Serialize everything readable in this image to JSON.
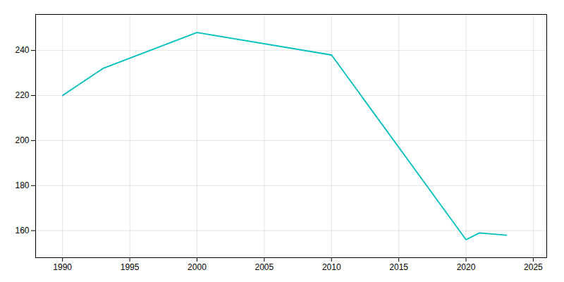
{
  "chart_data": {
    "type": "line",
    "x": [
      1990,
      1993,
      2000,
      2010,
      2020,
      2021,
      2023
    ],
    "values": [
      220,
      232,
      248,
      238,
      156,
      159,
      158
    ],
    "color": "#00BFBF",
    "xlim": [
      1988,
      2026
    ],
    "ylim": [
      148,
      256
    ],
    "xticks": [
      1990,
      1995,
      2000,
      2005,
      2010,
      2015,
      2020,
      2025
    ],
    "yticks": [
      160,
      180,
      200,
      220,
      240
    ],
    "grid": true
  }
}
